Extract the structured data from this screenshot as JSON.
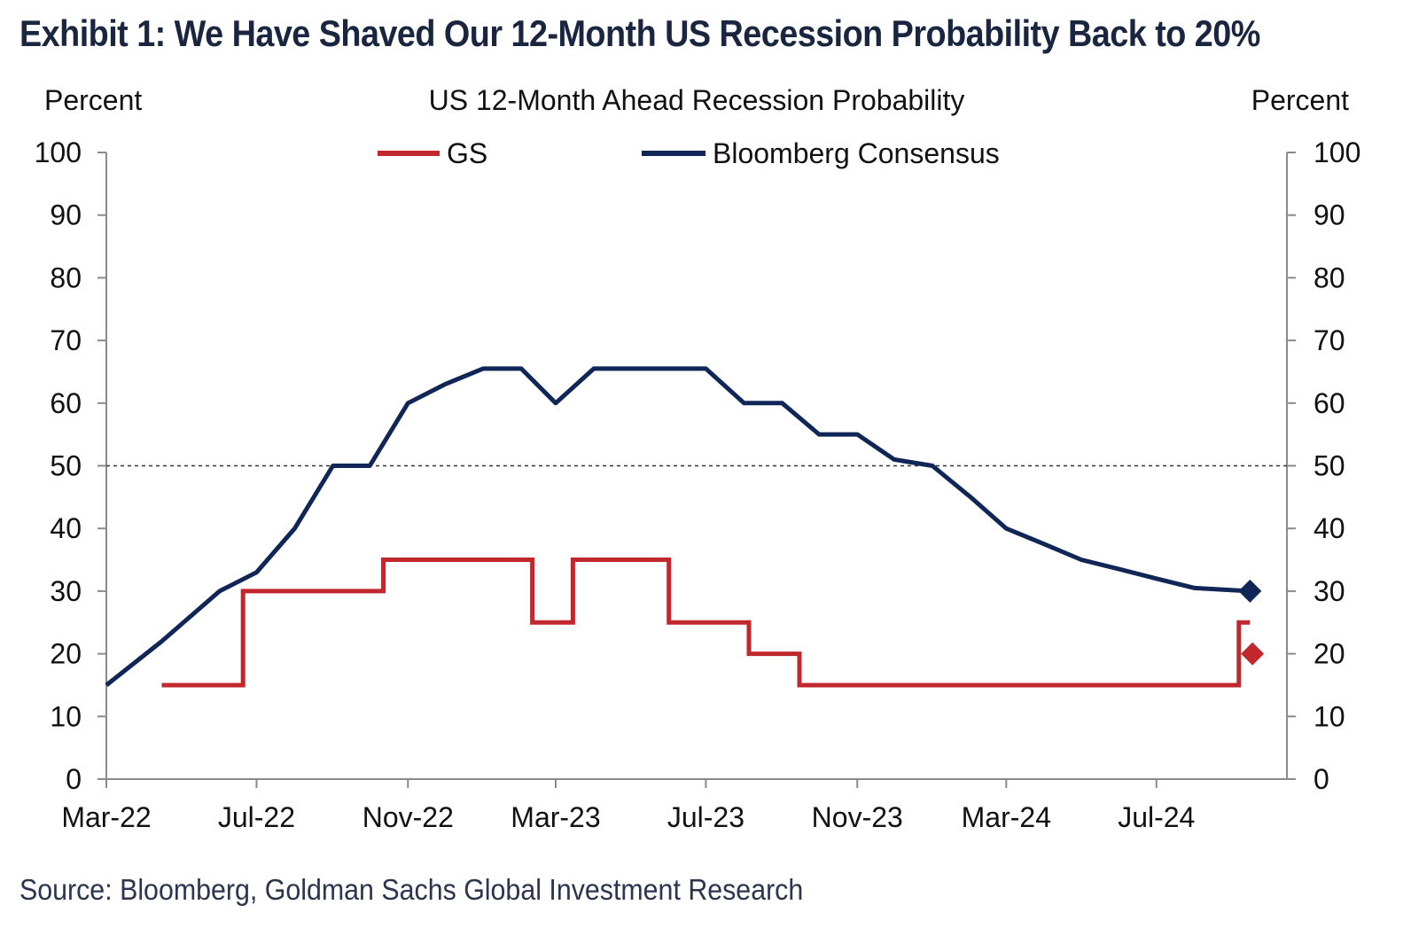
{
  "title": "Exhibit 1: We Have Shaved Our 12-Month US Recession Probability Back to 20%",
  "source": "Source: Bloomberg, Goldman Sachs Global Investment Research",
  "chart_data": {
    "type": "line",
    "title": "US 12-Month  Ahead  Recession Probability",
    "ylabel_left": "Percent",
    "ylabel_right": "Percent",
    "ylim": [
      0,
      100
    ],
    "yticks": [
      0,
      10,
      20,
      30,
      40,
      50,
      60,
      70,
      80,
      90,
      100
    ],
    "x_ticks": [
      {
        "date": "2022-03-01",
        "label": "Mar-22"
      },
      {
        "date": "2022-07-01",
        "label": "Jul-22"
      },
      {
        "date": "2022-11-01",
        "label": "Nov-22"
      },
      {
        "date": "2023-03-01",
        "label": "Mar-23"
      },
      {
        "date": "2023-07-01",
        "label": "Jul-23"
      },
      {
        "date": "2023-11-01",
        "label": "Nov-23"
      },
      {
        "date": "2024-03-01",
        "label": "Mar-24"
      },
      {
        "date": "2024-07-01",
        "label": "Jul-24"
      }
    ],
    "x_range": [
      "2022-03-01",
      "2024-10-15"
    ],
    "reference_line": {
      "y": 50,
      "style": "dashed"
    },
    "grid": false,
    "legend": "top-center",
    "series": [
      {
        "name": "GS",
        "color": "#c0282d",
        "step": true,
        "points": [
          [
            "2022-04-15",
            15
          ],
          [
            "2022-06-20",
            30
          ],
          [
            "2022-10-12",
            35
          ],
          [
            "2023-02-10",
            25
          ],
          [
            "2023-03-15",
            35
          ],
          [
            "2023-06-01",
            25
          ],
          [
            "2023-08-05",
            20
          ],
          [
            "2023-09-15",
            15
          ],
          [
            "2024-09-06",
            25
          ],
          [
            "2024-09-15",
            25
          ]
        ],
        "marker": {
          "date": "2024-09-17",
          "value": 20,
          "shape": "diamond"
        }
      },
      {
        "name": "Bloomberg Consensus",
        "color": "#0f2657",
        "step": false,
        "points": [
          [
            "2022-03-01",
            15
          ],
          [
            "2022-04-15",
            22
          ],
          [
            "2022-06-01",
            30
          ],
          [
            "2022-07-01",
            33
          ],
          [
            "2022-08-01",
            40
          ],
          [
            "2022-09-01",
            50
          ],
          [
            "2022-10-01",
            50
          ],
          [
            "2022-11-01",
            60
          ],
          [
            "2022-12-01",
            63
          ],
          [
            "2023-01-01",
            65.5
          ],
          [
            "2023-02-01",
            65.5
          ],
          [
            "2023-03-01",
            60
          ],
          [
            "2023-04-01",
            65.5
          ],
          [
            "2023-05-01",
            65.5
          ],
          [
            "2023-06-01",
            65.5
          ],
          [
            "2023-07-01",
            65.5
          ],
          [
            "2023-08-01",
            60
          ],
          [
            "2023-09-01",
            60
          ],
          [
            "2023-10-01",
            55
          ],
          [
            "2023-11-01",
            55
          ],
          [
            "2023-12-01",
            51
          ],
          [
            "2024-01-01",
            50
          ],
          [
            "2024-02-01",
            45
          ],
          [
            "2024-03-01",
            40
          ],
          [
            "2024-04-01",
            37.5
          ],
          [
            "2024-05-01",
            35
          ],
          [
            "2024-06-01",
            33.5
          ],
          [
            "2024-07-01",
            32
          ],
          [
            "2024-08-01",
            30.5
          ],
          [
            "2024-09-15",
            30
          ]
        ],
        "marker": {
          "date": "2024-09-15",
          "value": 30,
          "shape": "diamond"
        }
      }
    ]
  }
}
